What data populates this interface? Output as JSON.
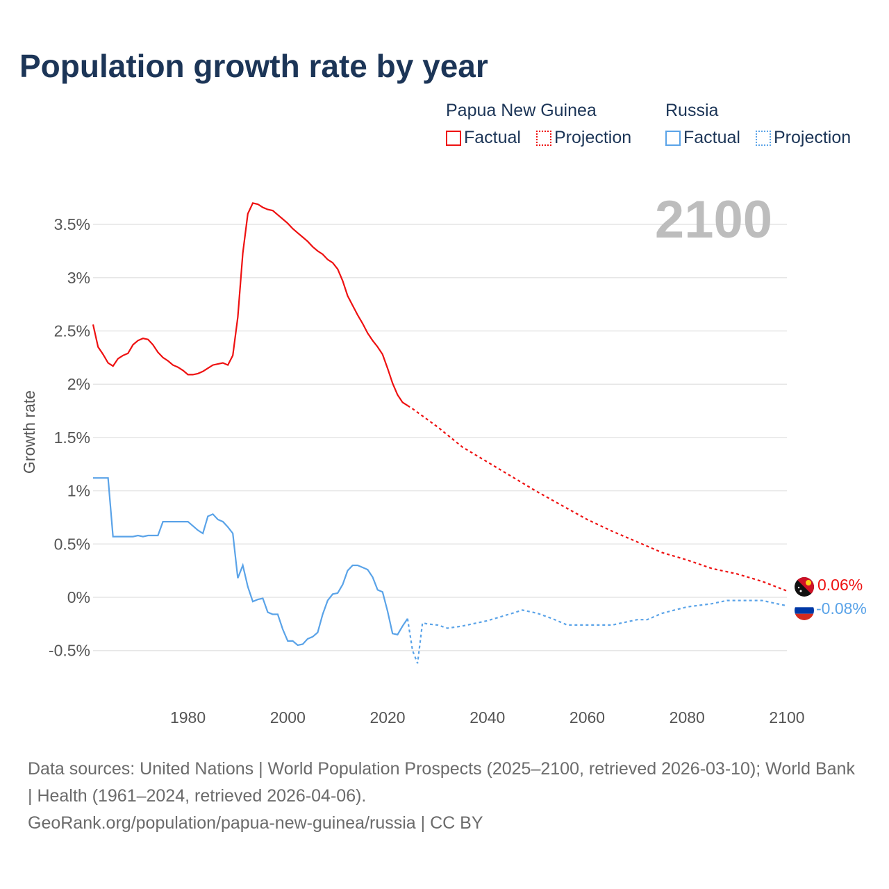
{
  "title": "Population growth rate by year",
  "legend": {
    "groups": [
      {
        "name": "Papua New Guinea",
        "color": "#ee1111",
        "factual": "Factual",
        "projection": "Projection"
      },
      {
        "name": "Russia",
        "color": "#5aa3e8",
        "factual": "Factual",
        "projection": "Projection"
      }
    ]
  },
  "year_display": "2100",
  "footer": {
    "sources": "Data sources: United Nations | World Population Prospects (2025–2100, retrieved 2026-03-10); World Bank | Health (1961–2024, retrieved 2026-04-06).",
    "link": "GeoRank.org/population/papua-new-guinea/russia | CC BY"
  },
  "chart_data": {
    "type": "line",
    "title": "Population growth rate by year",
    "xlabel": "",
    "ylabel": "Growth rate",
    "xlim": [
      1961,
      2100
    ],
    "ylim": [
      -0.75,
      3.8
    ],
    "x_ticks": [
      "1980",
      "2000",
      "2020",
      "2040",
      "2060",
      "2080",
      "2100"
    ],
    "y_ticks": [
      {
        "v": -0.5,
        "label": "-0.5%"
      },
      {
        "v": 0,
        "label": "0%"
      },
      {
        "v": 0.5,
        "label": "0.5%"
      },
      {
        "v": 1,
        "label": "1%"
      },
      {
        "v": 1.5,
        "label": "1.5%"
      },
      {
        "v": 2,
        "label": "2%"
      },
      {
        "v": 2.5,
        "label": "2.5%"
      },
      {
        "v": 3,
        "label": "3%"
      },
      {
        "v": 3.5,
        "label": "3.5%"
      }
    ],
    "grid": true,
    "series": [
      {
        "name": "Papua New Guinea",
        "color": "#ee1111",
        "end_label": "0.06%",
        "factual": [
          [
            1961,
            2.56
          ],
          [
            1962,
            2.35
          ],
          [
            1963,
            2.28
          ],
          [
            1964,
            2.2
          ],
          [
            1965,
            2.17
          ],
          [
            1966,
            2.24
          ],
          [
            1967,
            2.27
          ],
          [
            1968,
            2.29
          ],
          [
            1969,
            2.37
          ],
          [
            1970,
            2.41
          ],
          [
            1971,
            2.43
          ],
          [
            1972,
            2.42
          ],
          [
            1973,
            2.37
          ],
          [
            1974,
            2.3
          ],
          [
            1975,
            2.25
          ],
          [
            1976,
            2.22
          ],
          [
            1977,
            2.18
          ],
          [
            1978,
            2.16
          ],
          [
            1979,
            2.13
          ],
          [
            1980,
            2.09
          ],
          [
            1981,
            2.09
          ],
          [
            1982,
            2.1
          ],
          [
            1983,
            2.12
          ],
          [
            1984,
            2.15
          ],
          [
            1985,
            2.18
          ],
          [
            1986,
            2.19
          ],
          [
            1987,
            2.2
          ],
          [
            1988,
            2.18
          ],
          [
            1989,
            2.27
          ],
          [
            1990,
            2.63
          ],
          [
            1991,
            3.23
          ],
          [
            1992,
            3.6
          ],
          [
            1993,
            3.7
          ],
          [
            1994,
            3.69
          ],
          [
            1995,
            3.66
          ],
          [
            1996,
            3.64
          ],
          [
            1997,
            3.63
          ],
          [
            1998,
            3.59
          ],
          [
            1999,
            3.55
          ],
          [
            2000,
            3.51
          ],
          [
            2001,
            3.46
          ],
          [
            2002,
            3.42
          ],
          [
            2003,
            3.38
          ],
          [
            2004,
            3.34
          ],
          [
            2005,
            3.29
          ],
          [
            2006,
            3.25
          ],
          [
            2007,
            3.22
          ],
          [
            2008,
            3.17
          ],
          [
            2009,
            3.14
          ],
          [
            2010,
            3.08
          ],
          [
            2011,
            2.97
          ],
          [
            2012,
            2.83
          ],
          [
            2013,
            2.74
          ],
          [
            2014,
            2.65
          ],
          [
            2015,
            2.57
          ],
          [
            2016,
            2.48
          ],
          [
            2017,
            2.41
          ],
          [
            2018,
            2.35
          ],
          [
            2019,
            2.28
          ],
          [
            2020,
            2.15
          ],
          [
            2021,
            2.01
          ],
          [
            2022,
            1.9
          ],
          [
            2023,
            1.83
          ],
          [
            2024,
            1.8
          ]
        ],
        "projection": [
          [
            2024,
            1.8
          ],
          [
            2025,
            1.77
          ],
          [
            2030,
            1.6
          ],
          [
            2035,
            1.41
          ],
          [
            2040,
            1.27
          ],
          [
            2045,
            1.13
          ],
          [
            2050,
            0.99
          ],
          [
            2055,
            0.86
          ],
          [
            2060,
            0.73
          ],
          [
            2065,
            0.62
          ],
          [
            2070,
            0.52
          ],
          [
            2075,
            0.42
          ],
          [
            2080,
            0.35
          ],
          [
            2085,
            0.27
          ],
          [
            2090,
            0.22
          ],
          [
            2095,
            0.15
          ],
          [
            2100,
            0.06
          ]
        ]
      },
      {
        "name": "Russia",
        "color": "#5aa3e8",
        "end_label": "-0.08%",
        "factual": [
          [
            1961,
            1.12
          ],
          [
            1962,
            1.12
          ],
          [
            1963,
            1.12
          ],
          [
            1964,
            1.12
          ],
          [
            1965,
            0.57
          ],
          [
            1966,
            0.57
          ],
          [
            1967,
            0.57
          ],
          [
            1968,
            0.57
          ],
          [
            1969,
            0.57
          ],
          [
            1970,
            0.58
          ],
          [
            1971,
            0.57
          ],
          [
            1972,
            0.58
          ],
          [
            1973,
            0.58
          ],
          [
            1974,
            0.58
          ],
          [
            1975,
            0.71
          ],
          [
            1976,
            0.71
          ],
          [
            1977,
            0.71
          ],
          [
            1978,
            0.71
          ],
          [
            1979,
            0.71
          ],
          [
            1980,
            0.71
          ],
          [
            1981,
            0.67
          ],
          [
            1982,
            0.63
          ],
          [
            1983,
            0.6
          ],
          [
            1984,
            0.76
          ],
          [
            1985,
            0.78
          ],
          [
            1986,
            0.73
          ],
          [
            1987,
            0.71
          ],
          [
            1988,
            0.66
          ],
          [
            1989,
            0.6
          ],
          [
            1990,
            0.18
          ],
          [
            1991,
            0.3
          ],
          [
            1992,
            0.1
          ],
          [
            1993,
            -0.04
          ],
          [
            1994,
            -0.02
          ],
          [
            1995,
            -0.01
          ],
          [
            1996,
            -0.14
          ],
          [
            1997,
            -0.16
          ],
          [
            1998,
            -0.16
          ],
          [
            1999,
            -0.3
          ],
          [
            2000,
            -0.41
          ],
          [
            2001,
            -0.41
          ],
          [
            2002,
            -0.45
          ],
          [
            2003,
            -0.44
          ],
          [
            2004,
            -0.39
          ],
          [
            2005,
            -0.37
          ],
          [
            2006,
            -0.33
          ],
          [
            2007,
            -0.16
          ],
          [
            2008,
            -0.03
          ],
          [
            2009,
            0.03
          ],
          [
            2010,
            0.04
          ],
          [
            2011,
            0.12
          ],
          [
            2012,
            0.25
          ],
          [
            2013,
            0.3
          ],
          [
            2014,
            0.3
          ],
          [
            2015,
            0.28
          ],
          [
            2016,
            0.26
          ],
          [
            2017,
            0.19
          ],
          [
            2018,
            0.07
          ],
          [
            2019,
            0.05
          ],
          [
            2020,
            -0.13
          ],
          [
            2021,
            -0.34
          ],
          [
            2022,
            -0.35
          ],
          [
            2023,
            -0.27
          ],
          [
            2024,
            -0.2
          ]
        ],
        "projection": [
          [
            2024,
            -0.2
          ],
          [
            2025,
            -0.5
          ],
          [
            2026,
            -0.62
          ],
          [
            2027,
            -0.24
          ],
          [
            2028,
            -0.25
          ],
          [
            2030,
            -0.26
          ],
          [
            2032,
            -0.29
          ],
          [
            2035,
            -0.27
          ],
          [
            2040,
            -0.22
          ],
          [
            2045,
            -0.15
          ],
          [
            2047,
            -0.12
          ],
          [
            2050,
            -0.15
          ],
          [
            2053,
            -0.2
          ],
          [
            2056,
            -0.26
          ],
          [
            2060,
            -0.26
          ],
          [
            2065,
            -0.26
          ],
          [
            2070,
            -0.21
          ],
          [
            2072,
            -0.21
          ],
          [
            2075,
            -0.15
          ],
          [
            2080,
            -0.09
          ],
          [
            2085,
            -0.06
          ],
          [
            2088,
            -0.03
          ],
          [
            2092,
            -0.03
          ],
          [
            2095,
            -0.03
          ],
          [
            2100,
            -0.08
          ]
        ]
      }
    ]
  }
}
